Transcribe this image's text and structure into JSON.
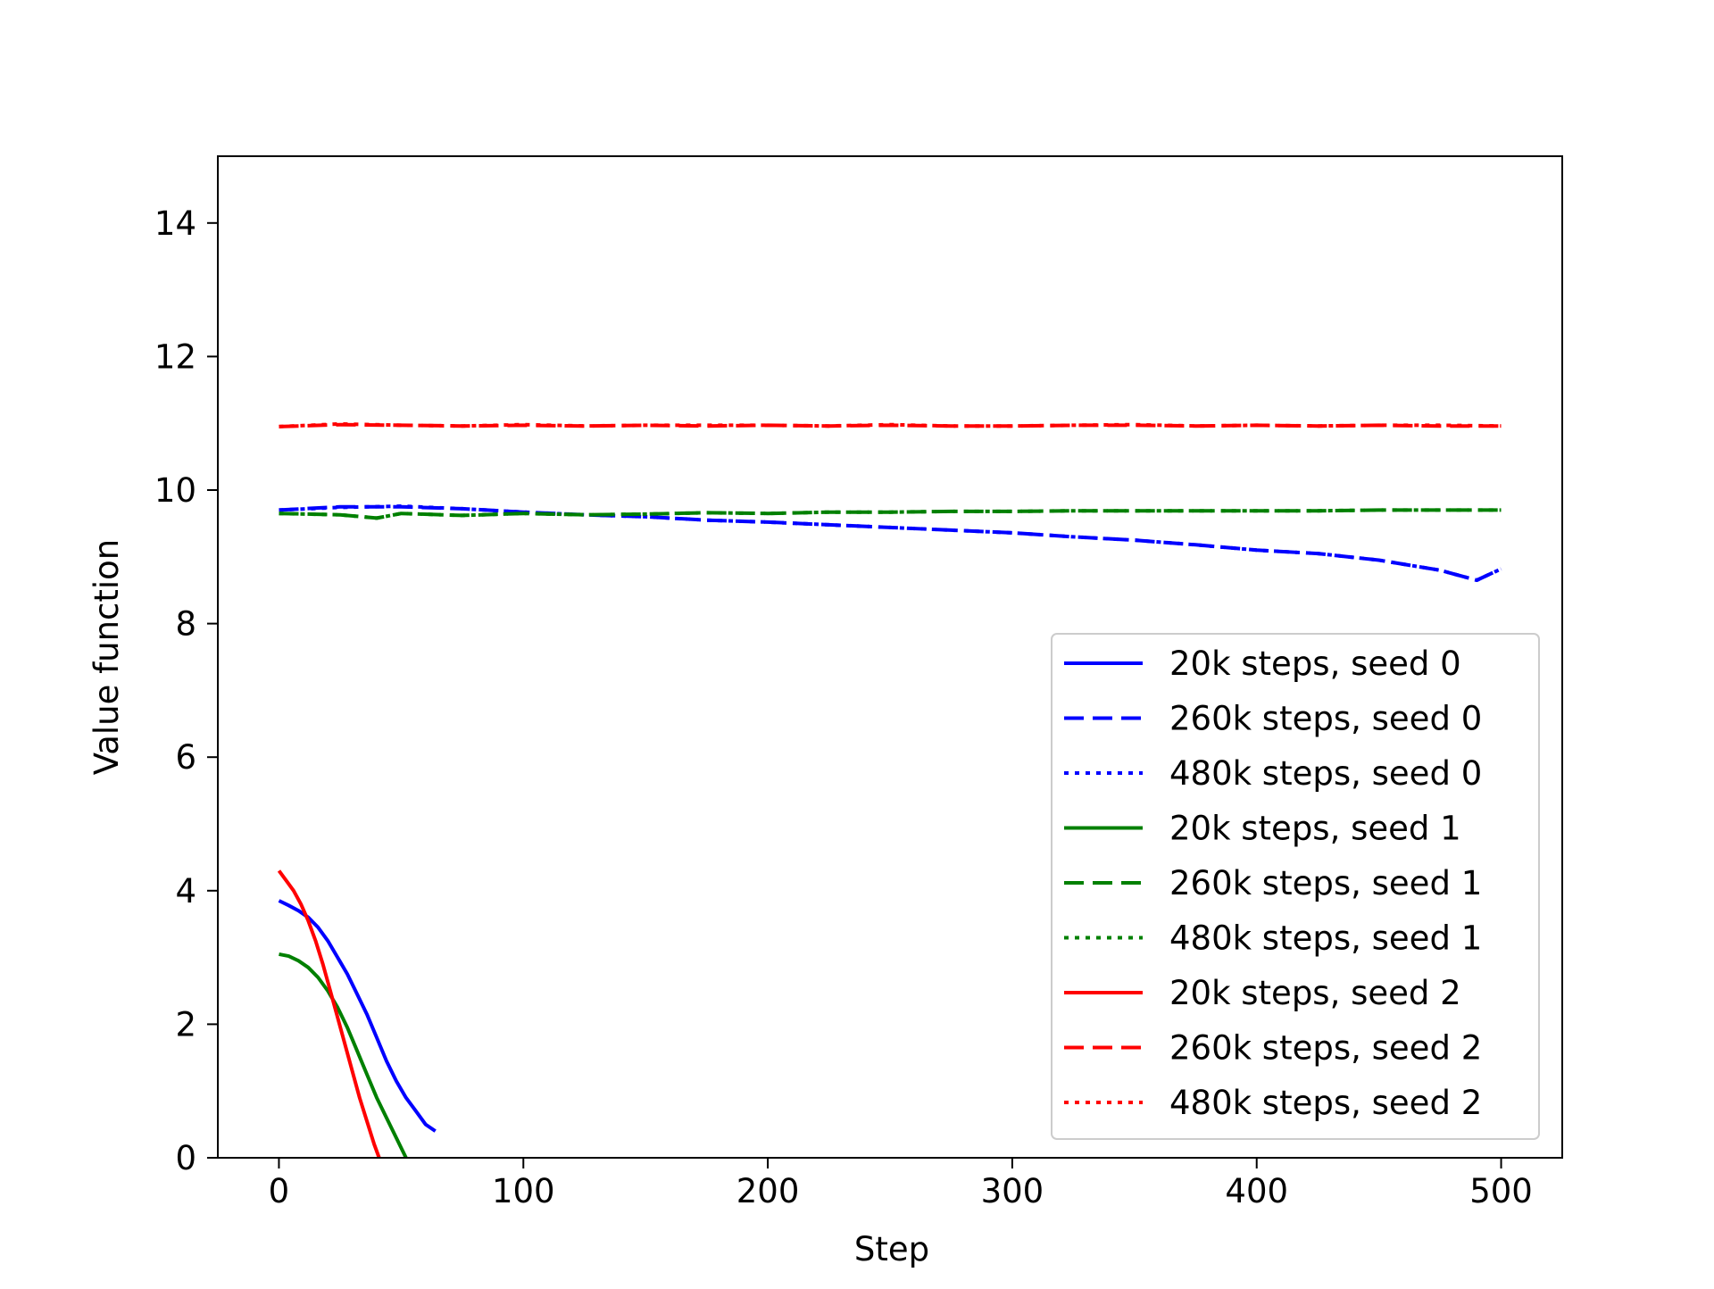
{
  "chart_data": {
    "type": "line",
    "title": "",
    "xlabel": "Step",
    "ylabel": "Value function",
    "xlim": [
      -25,
      525
    ],
    "ylim": [
      0,
      15
    ],
    "xticks": [
      0,
      100,
      200,
      300,
      400,
      500
    ],
    "yticks": [
      0,
      2,
      4,
      6,
      8,
      10,
      12,
      14
    ],
    "grid": false,
    "legend_position": "lower right",
    "series": [
      {
        "name": "20k steps, seed 0",
        "color": "#0000ff",
        "style": "solid",
        "x": [
          0,
          4,
          8,
          12,
          16,
          20,
          24,
          28,
          32,
          36,
          40,
          44,
          48,
          52,
          56,
          60,
          64
        ],
        "y": [
          3.85,
          3.78,
          3.7,
          3.6,
          3.45,
          3.25,
          3.0,
          2.75,
          2.45,
          2.15,
          1.8,
          1.45,
          1.15,
          0.9,
          0.7,
          0.5,
          0.4
        ]
      },
      {
        "name": "260k steps, seed 0",
        "color": "#0000ff",
        "style": "dashed",
        "x": [
          0,
          25,
          50,
          75,
          100,
          125,
          150,
          175,
          200,
          225,
          250,
          275,
          300,
          325,
          350,
          375,
          400,
          425,
          450,
          475,
          490,
          500
        ],
        "y": [
          9.7,
          9.75,
          9.75,
          9.72,
          9.67,
          9.63,
          9.6,
          9.55,
          9.52,
          9.48,
          9.44,
          9.4,
          9.36,
          9.3,
          9.25,
          9.18,
          9.1,
          9.05,
          8.95,
          8.8,
          8.65,
          8.82
        ]
      },
      {
        "name": "480k steps, seed 0",
        "color": "#0000ff",
        "style": "dotted",
        "x": [
          0,
          25,
          50,
          75,
          100,
          125,
          150,
          175,
          200,
          225,
          250,
          275,
          300,
          325,
          350,
          375,
          400,
          425,
          450,
          475,
          490,
          500
        ],
        "y": [
          9.7,
          9.74,
          9.76,
          9.72,
          9.67,
          9.63,
          9.6,
          9.55,
          9.52,
          9.48,
          9.44,
          9.4,
          9.36,
          9.3,
          9.25,
          9.18,
          9.1,
          9.05,
          8.95,
          8.8,
          8.65,
          8.82
        ]
      },
      {
        "name": "20k steps, seed 1",
        "color": "#008000",
        "style": "solid",
        "x": [
          0,
          4,
          8,
          12,
          16,
          20,
          24,
          28,
          32,
          36,
          40,
          44,
          48,
          52
        ],
        "y": [
          3.05,
          3.02,
          2.95,
          2.85,
          2.7,
          2.5,
          2.25,
          1.95,
          1.6,
          1.25,
          0.9,
          0.6,
          0.3,
          0.0
        ]
      },
      {
        "name": "260k steps, seed 1",
        "color": "#008000",
        "style": "dashed",
        "x": [
          0,
          25,
          40,
          50,
          75,
          100,
          125,
          150,
          175,
          200,
          225,
          250,
          275,
          300,
          325,
          350,
          375,
          400,
          425,
          450,
          475,
          500
        ],
        "y": [
          9.65,
          9.63,
          9.58,
          9.65,
          9.62,
          9.65,
          9.63,
          9.64,
          9.66,
          9.65,
          9.67,
          9.67,
          9.68,
          9.68,
          9.69,
          9.69,
          9.69,
          9.69,
          9.69,
          9.7,
          9.7,
          9.7
        ]
      },
      {
        "name": "480k steps, seed 1",
        "color": "#008000",
        "style": "dotted",
        "x": [
          0,
          25,
          40,
          50,
          75,
          100,
          125,
          150,
          175,
          200,
          225,
          250,
          275,
          300,
          325,
          350,
          375,
          400,
          425,
          450,
          475,
          500
        ],
        "y": [
          9.65,
          9.63,
          9.58,
          9.65,
          9.62,
          9.65,
          9.63,
          9.64,
          9.66,
          9.65,
          9.67,
          9.67,
          9.68,
          9.68,
          9.69,
          9.69,
          9.69,
          9.69,
          9.69,
          9.7,
          9.7,
          9.7
        ]
      },
      {
        "name": "20k steps, seed 2",
        "color": "#ff0000",
        "style": "solid",
        "x": [
          0,
          3,
          6,
          9,
          12,
          15,
          18,
          21,
          24,
          27,
          30,
          33,
          36,
          39,
          41
        ],
        "y": [
          4.3,
          4.15,
          4.0,
          3.8,
          3.55,
          3.25,
          2.9,
          2.5,
          2.1,
          1.7,
          1.3,
          0.9,
          0.55,
          0.2,
          0.0
        ]
      },
      {
        "name": "260k steps, seed 2",
        "color": "#ff0000",
        "style": "dashed",
        "x": [
          0,
          25,
          50,
          75,
          100,
          125,
          150,
          175,
          200,
          225,
          250,
          275,
          300,
          325,
          350,
          375,
          400,
          425,
          450,
          475,
          500
        ],
        "y": [
          10.95,
          10.98,
          10.97,
          10.96,
          10.97,
          10.96,
          10.97,
          10.96,
          10.97,
          10.96,
          10.97,
          10.96,
          10.96,
          10.97,
          10.97,
          10.96,
          10.97,
          10.96,
          10.97,
          10.96,
          10.96
        ]
      },
      {
        "name": "480k steps, seed 2",
        "color": "#ff0000",
        "style": "dotted",
        "x": [
          0,
          25,
          50,
          75,
          100,
          125,
          150,
          175,
          200,
          225,
          250,
          275,
          300,
          325,
          350,
          375,
          400,
          425,
          450,
          475,
          500
        ],
        "y": [
          10.95,
          10.99,
          10.97,
          10.96,
          10.98,
          10.96,
          10.97,
          10.97,
          10.97,
          10.96,
          10.98,
          10.96,
          10.96,
          10.97,
          10.98,
          10.96,
          10.97,
          10.96,
          10.97,
          10.97,
          10.96
        ]
      }
    ]
  }
}
